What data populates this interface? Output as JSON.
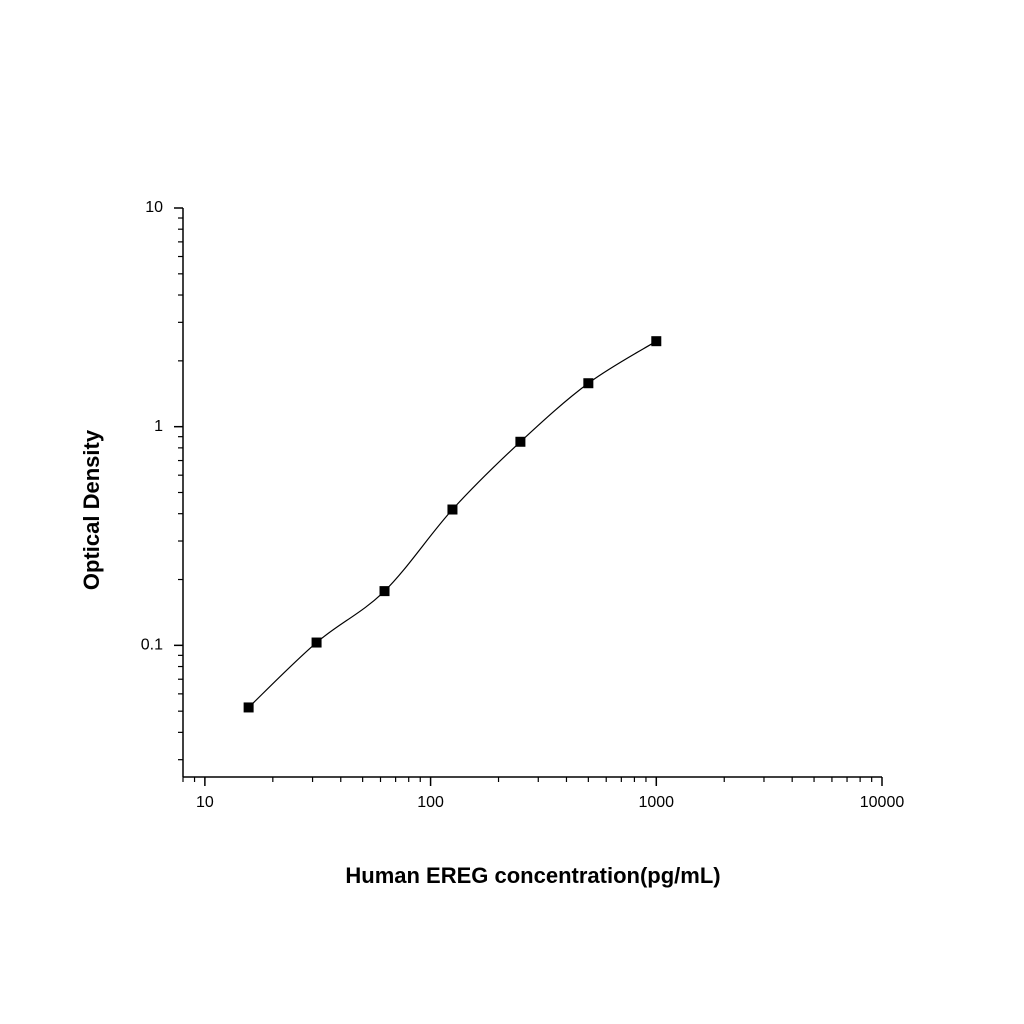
{
  "chart_data": {
    "type": "scatter",
    "x_label": "Human EREG concentration(pg/mL)",
    "y_label": "Optical Density",
    "x": [
      15.625,
      31.25,
      62.5,
      125,
      250,
      500,
      1000
    ],
    "values": [
      0.052,
      0.103,
      0.177,
      0.418,
      0.853,
      1.58,
      2.46
    ],
    "color": "#000000",
    "fit_curve": true,
    "x_log": true,
    "y_log": true,
    "xlim": [
      8,
      10000
    ],
    "xticks": [
      10,
      100,
      1000,
      10000
    ],
    "ylim": [
      0.025,
      10
    ],
    "yticks": [
      0.1,
      1,
      10
    ]
  }
}
